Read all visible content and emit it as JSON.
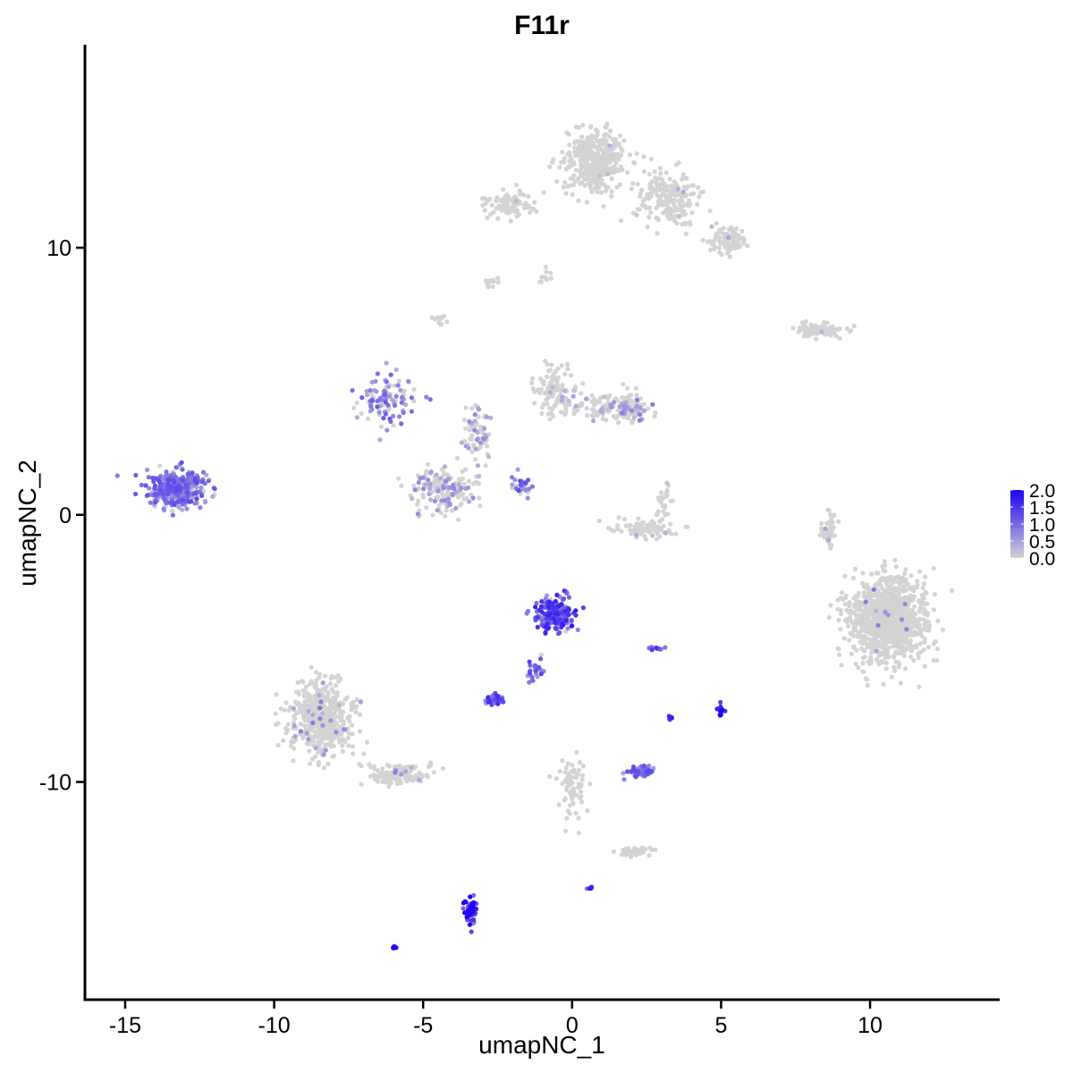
{
  "chart_data": {
    "type": "scatter",
    "title": "F11r",
    "xlabel": "umapNC_1",
    "ylabel": "umapNC_2",
    "xlim": [
      -16.35,
      14.35
    ],
    "ylim": [
      -18.15,
      17.6
    ],
    "xticks": [
      -15,
      -10,
      -5,
      0,
      5,
      10
    ],
    "yticks": [
      -10,
      0,
      10
    ],
    "xtick_labels": [
      "-15",
      "-10",
      "-5",
      "0",
      "5",
      "10"
    ],
    "ytick_labels": [
      "-10",
      "0",
      "10"
    ],
    "grid": false,
    "color_scale": {
      "low": "#d3d3d3",
      "high": "#1d00f5",
      "min": 0,
      "max": 2.0,
      "ticks": [
        0,
        0.5,
        1.0,
        1.5,
        2.0
      ],
      "tick_labels": [
        "0.0",
        "0.5",
        "1.0",
        "1.5",
        "2.0"
      ]
    },
    "legend_position": "right",
    "clusters": [
      {
        "x": -13.3,
        "y": 1.0,
        "sx": 0.85,
        "sy": 0.6,
        "n": 380,
        "expr": 0.9,
        "frac": 0.85
      },
      {
        "x": -6.2,
        "y": 4.4,
        "sx": 0.9,
        "sy": 0.75,
        "n": 110,
        "expr": 0.8,
        "frac": 0.6
      },
      {
        "x": -4.3,
        "y": 0.9,
        "sx": 0.95,
        "sy": 0.75,
        "n": 170,
        "expr": 0.5,
        "frac": 0.3
      },
      {
        "x": -3.2,
        "y": 3.0,
        "sx": 0.55,
        "sy": 1.2,
        "n": 70,
        "expr": 0.5,
        "frac": 0.3
      },
      {
        "x": -1.7,
        "y": 1.1,
        "sx": 0.35,
        "sy": 0.35,
        "n": 30,
        "expr": 0.9,
        "frac": 0.8
      },
      {
        "x": -0.5,
        "y": 4.7,
        "sx": 0.65,
        "sy": 0.85,
        "n": 110,
        "expr": 0.3,
        "frac": 0.1
      },
      {
        "x": 1.2,
        "y": 4.1,
        "sx": 1.1,
        "sy": 0.45,
        "n": 90,
        "expr": 0.4,
        "frac": 0.2
      },
      {
        "x": 2.0,
        "y": 3.9,
        "sx": 0.55,
        "sy": 0.4,
        "n": 90,
        "expr": 0.6,
        "frac": 0.3
      },
      {
        "x": 2.5,
        "y": -0.5,
        "sx": 1.0,
        "sy": 0.35,
        "n": 80,
        "expr": 0.3,
        "frac": 0.05
      },
      {
        "x": 3.1,
        "y": 0.5,
        "sx": 0.25,
        "sy": 0.6,
        "n": 25,
        "expr": 0.2,
        "frac": 0.05
      },
      {
        "x": 0.8,
        "y": 13.2,
        "sx": 0.9,
        "sy": 1.0,
        "n": 420,
        "expr": 0.3,
        "frac": 0.01
      },
      {
        "x": 3.2,
        "y": 11.8,
        "sx": 1.0,
        "sy": 0.9,
        "n": 200,
        "expr": 0.3,
        "frac": 0.01
      },
      {
        "x": 5.2,
        "y": 10.2,
        "sx": 0.6,
        "sy": 0.45,
        "n": 100,
        "expr": 0.3,
        "frac": 0.01
      },
      {
        "x": -2.1,
        "y": 11.6,
        "sx": 1.0,
        "sy": 0.45,
        "n": 90,
        "expr": 0.3,
        "frac": 0.01
      },
      {
        "x": -0.8,
        "y": 9.0,
        "sx": 0.3,
        "sy": 0.35,
        "n": 10,
        "expr": 0.3,
        "frac": 0.0
      },
      {
        "x": -2.7,
        "y": 8.7,
        "sx": 0.2,
        "sy": 0.15,
        "n": 12,
        "expr": 0.3,
        "frac": 0.0
      },
      {
        "x": -4.4,
        "y": 7.3,
        "sx": 0.2,
        "sy": 0.2,
        "n": 14,
        "expr": 0.3,
        "frac": 0.0
      },
      {
        "x": 8.2,
        "y": 6.9,
        "sx": 0.9,
        "sy": 0.25,
        "n": 90,
        "expr": 0.3,
        "frac": 0.02
      },
      {
        "x": 10.6,
        "y": -3.9,
        "sx": 1.15,
        "sy": 1.35,
        "n": 1100,
        "expr": 0.6,
        "frac": 0.015
      },
      {
        "x": 8.6,
        "y": -0.5,
        "sx": 0.25,
        "sy": 0.6,
        "n": 40,
        "expr": 0.4,
        "frac": 0.05
      },
      {
        "x": -8.4,
        "y": -7.6,
        "sx": 1.0,
        "sy": 1.25,
        "n": 480,
        "expr": 0.6,
        "frac": 0.05
      },
      {
        "x": -5.8,
        "y": -9.7,
        "sx": 0.95,
        "sy": 0.35,
        "n": 130,
        "expr": 0.6,
        "frac": 0.06
      },
      {
        "x": -0.6,
        "y": -3.7,
        "sx": 0.6,
        "sy": 0.55,
        "n": 200,
        "expr": 1.2,
        "frac": 0.9
      },
      {
        "x": -1.2,
        "y": -5.9,
        "sx": 0.3,
        "sy": 0.5,
        "n": 25,
        "expr": 1.0,
        "frac": 0.9
      },
      {
        "x": -2.6,
        "y": -6.9,
        "sx": 0.3,
        "sy": 0.15,
        "n": 40,
        "expr": 1.1,
        "frac": 0.9
      },
      {
        "x": 2.3,
        "y": -9.6,
        "sx": 0.35,
        "sy": 0.2,
        "n": 70,
        "expr": 0.9,
        "frac": 0.85
      },
      {
        "x": 2.8,
        "y": -5.0,
        "sx": 0.25,
        "sy": 0.1,
        "n": 12,
        "expr": 1.3,
        "frac": 1.0
      },
      {
        "x": 5.0,
        "y": -7.3,
        "sx": 0.1,
        "sy": 0.2,
        "n": 18,
        "expr": 1.5,
        "frac": 1.0
      },
      {
        "x": 3.3,
        "y": -7.6,
        "sx": 0.08,
        "sy": 0.12,
        "n": 6,
        "expr": 1.2,
        "frac": 1.0
      },
      {
        "x": 0.0,
        "y": -10.3,
        "sx": 0.4,
        "sy": 1.0,
        "n": 70,
        "expr": 0.3,
        "frac": 0.0
      },
      {
        "x": 2.1,
        "y": -12.6,
        "sx": 0.6,
        "sy": 0.15,
        "n": 35,
        "expr": 0.3,
        "frac": 0.0
      },
      {
        "x": -3.4,
        "y": -14.8,
        "sx": 0.2,
        "sy": 0.5,
        "n": 50,
        "expr": 1.6,
        "frac": 1.0
      },
      {
        "x": 0.6,
        "y": -14.0,
        "sx": 0.1,
        "sy": 0.1,
        "n": 5,
        "expr": 1.4,
        "frac": 1.0
      },
      {
        "x": -6.0,
        "y": -16.2,
        "sx": 0.1,
        "sy": 0.05,
        "n": 5,
        "expr": 1.9,
        "frac": 1.0
      }
    ]
  }
}
